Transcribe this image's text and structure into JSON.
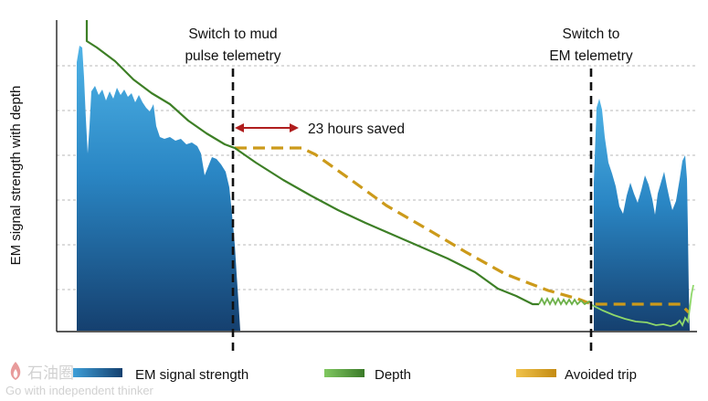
{
  "chart_data": {
    "type": "area",
    "ylabel": "EM signal strength with depth",
    "grid": "horizontal dashed",
    "annotations": {
      "switch_mud": [
        "Switch to mud",
        "pulse telemetry"
      ],
      "switch_em": [
        "Switch to",
        "EM telemetry"
      ],
      "saved": "23 hours saved"
    },
    "series": [
      {
        "name": "EM signal strength",
        "color": "#1c5f9a"
      },
      {
        "name": "Depth",
        "color": "#5a9e3a"
      },
      {
        "name": "Avoided trip",
        "color": "#d7a21e"
      }
    ],
    "legend_position": "bottom"
  },
  "watermark": {
    "logo_text": "石油圈",
    "tagline": "Go with independent thinker"
  }
}
